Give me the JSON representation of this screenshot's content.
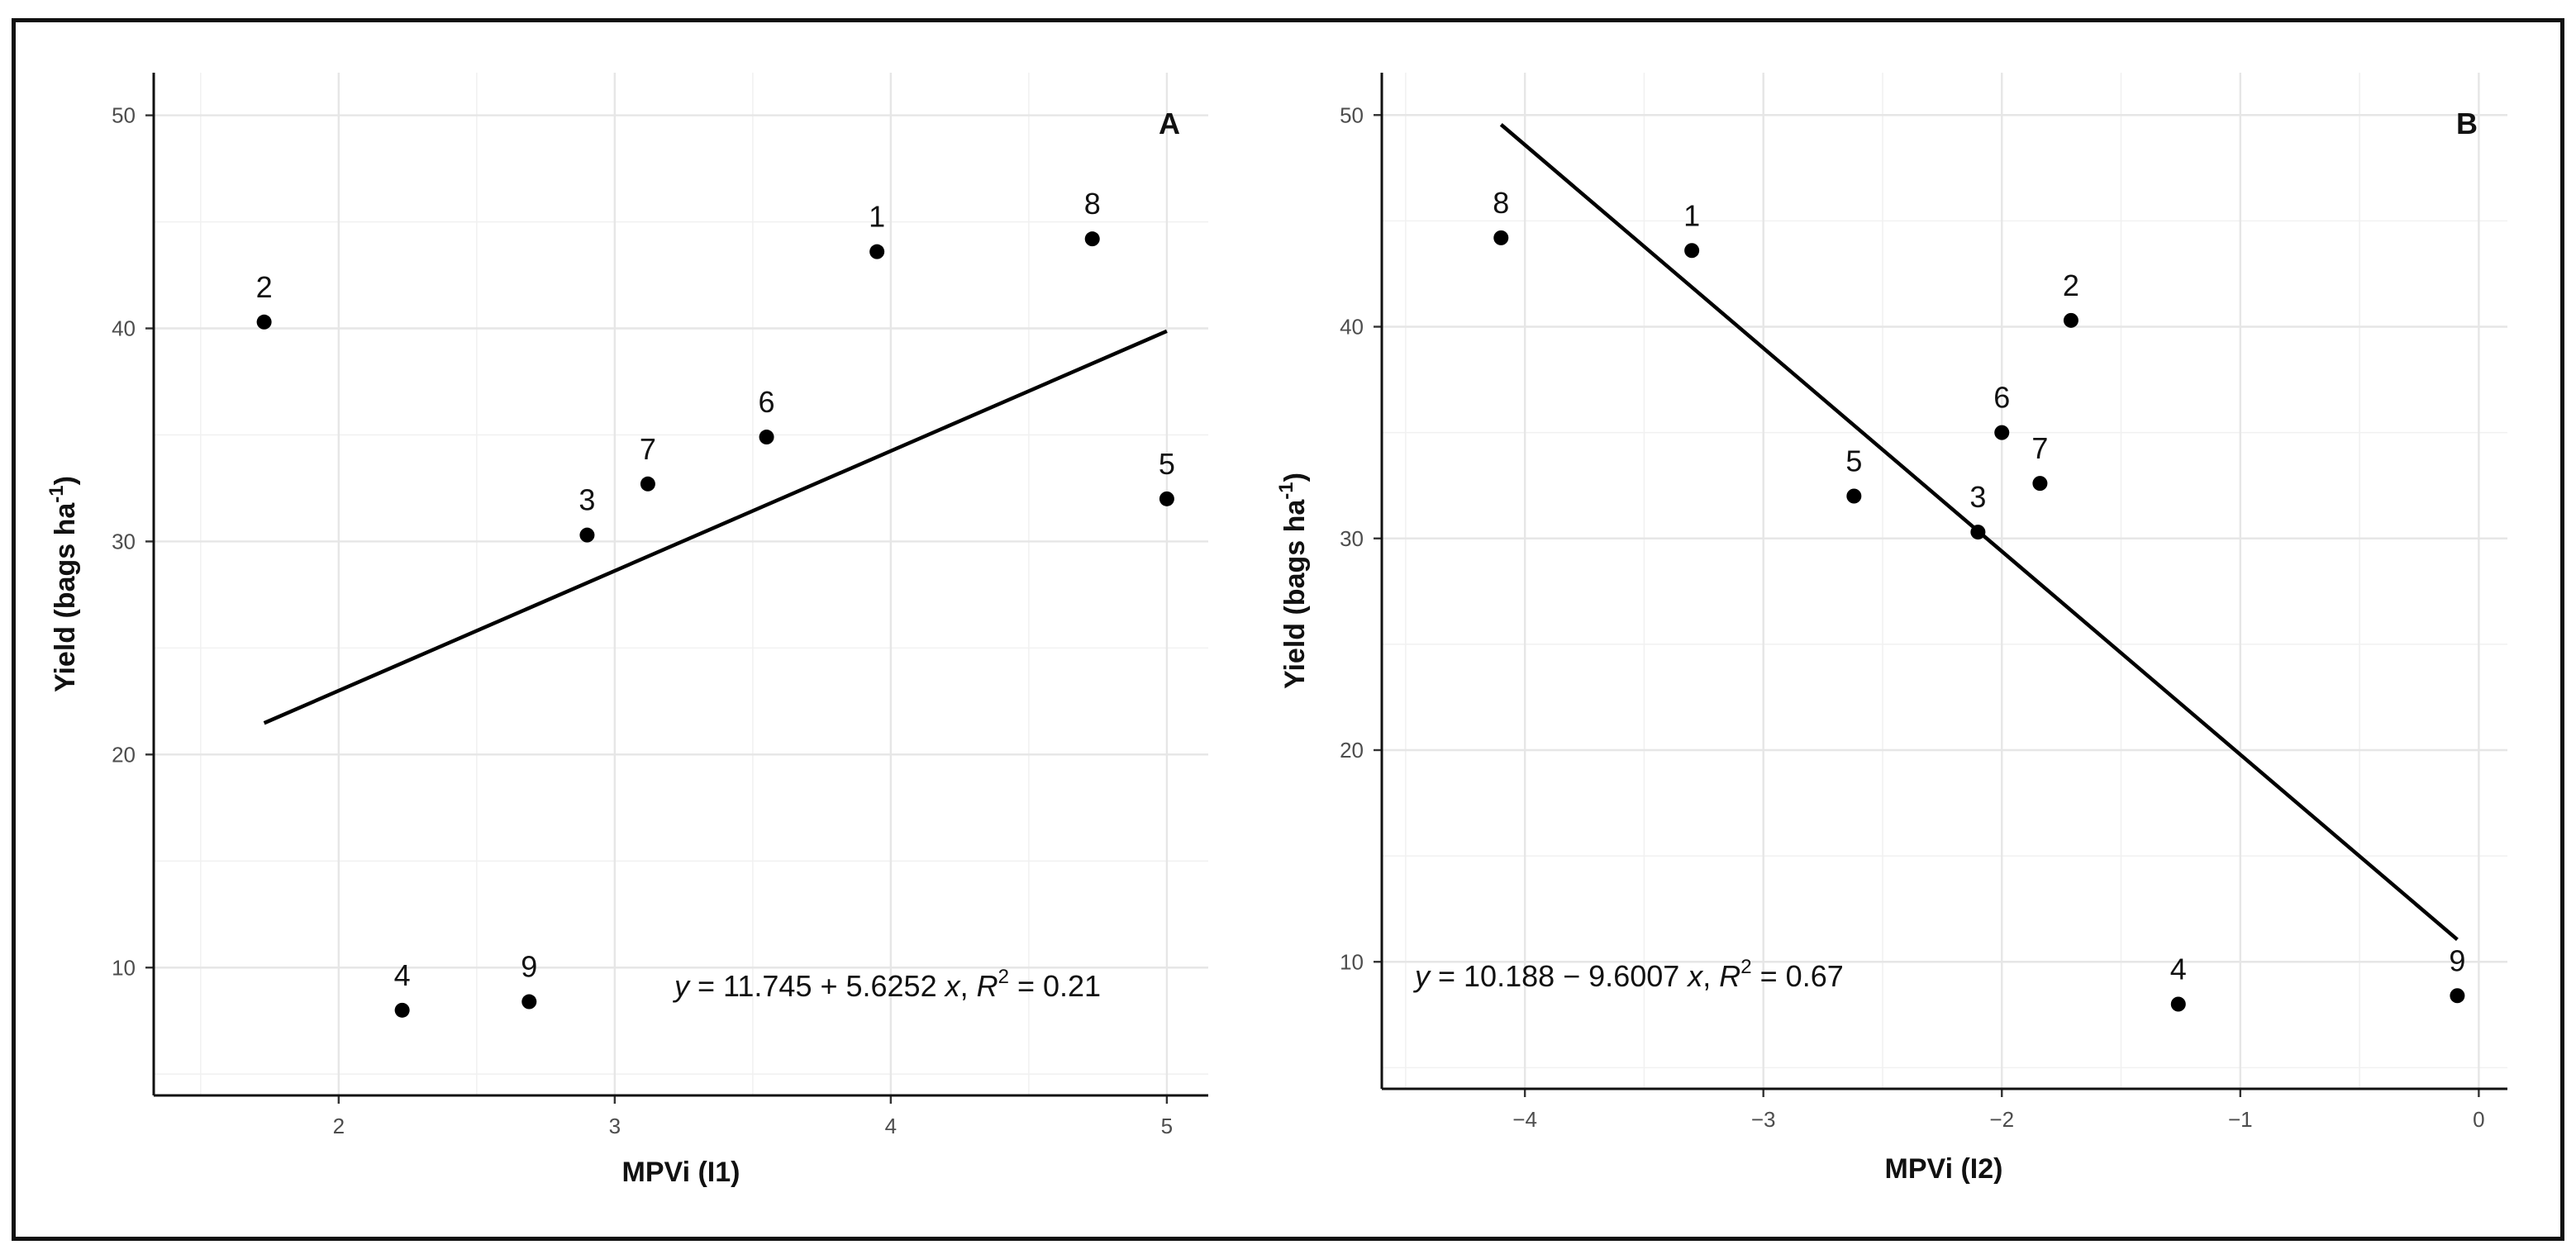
{
  "chart_data": [
    {
      "type": "scatter",
      "panel": "A",
      "xlabel": "MPVi (I1)",
      "ylabel": "Yield (bags ha",
      "ylabel_sup": "-1",
      "ylabel_close": ")",
      "xlim": [
        1.33,
        5.15
      ],
      "ylim": [
        4,
        52
      ],
      "xticks": [
        2,
        3,
        4,
        5
      ],
      "yticks": [
        10,
        20,
        30,
        40,
        50
      ],
      "grid": true,
      "points": [
        {
          "label": "1",
          "x": 3.95,
          "y": 43.6
        },
        {
          "label": "2",
          "x": 1.73,
          "y": 40.3
        },
        {
          "label": "3",
          "x": 2.9,
          "y": 30.3
        },
        {
          "label": "4",
          "x": 2.23,
          "y": 8.0
        },
        {
          "label": "5",
          "x": 5.0,
          "y": 32.0
        },
        {
          "label": "6",
          "x": 3.55,
          "y": 34.9
        },
        {
          "label": "7",
          "x": 3.12,
          "y": 32.7
        },
        {
          "label": "8",
          "x": 4.73,
          "y": 44.2
        },
        {
          "label": "9",
          "x": 2.69,
          "y": 8.4
        }
      ],
      "regression": {
        "intercept": 11.745,
        "slope": 5.6252,
        "x_from": 1.73,
        "x_to": 5.0
      },
      "equation": {
        "lhs": "y",
        "rest": " = 11.745 + 5.6252 ",
        "x": "x",
        "comma": ",  ",
        "r": "R",
        "sup": "2",
        "value": " = 0.21"
      }
    },
    {
      "type": "scatter",
      "panel": "B",
      "xlabel": "MPVi (I2)",
      "ylabel": "Yield (bags ha",
      "ylabel_sup": "-1",
      "ylabel_close": ")",
      "xlim": [
        -4.6,
        0.12
      ],
      "ylim": [
        4,
        52
      ],
      "xticks": [
        -4,
        -3,
        -2,
        -1,
        0
      ],
      "yticks": [
        10,
        20,
        30,
        40,
        50
      ],
      "grid": true,
      "points": [
        {
          "label": "1",
          "x": -3.3,
          "y": 43.6
        },
        {
          "label": "2",
          "x": -1.71,
          "y": 40.3
        },
        {
          "label": "3",
          "x": -2.1,
          "y": 30.3
        },
        {
          "label": "4",
          "x": -1.26,
          "y": 8.0
        },
        {
          "label": "5",
          "x": -2.62,
          "y": 32.0
        },
        {
          "label": "6",
          "x": -2.0,
          "y": 35.0
        },
        {
          "label": "7",
          "x": -1.84,
          "y": 32.6
        },
        {
          "label": "8",
          "x": -4.1,
          "y": 44.2
        },
        {
          "label": "9",
          "x": -0.09,
          "y": 8.4
        }
      ],
      "regression": {
        "intercept": 10.188,
        "slope": -9.6007,
        "x_from": -4.1,
        "x_to": -0.09
      },
      "equation": {
        "lhs": "y",
        "rest": " = 10.188 − 9.6007 ",
        "x": "x",
        "comma": ",  ",
        "r": "R",
        "sup": "2",
        "value": " = 0.67"
      }
    }
  ]
}
